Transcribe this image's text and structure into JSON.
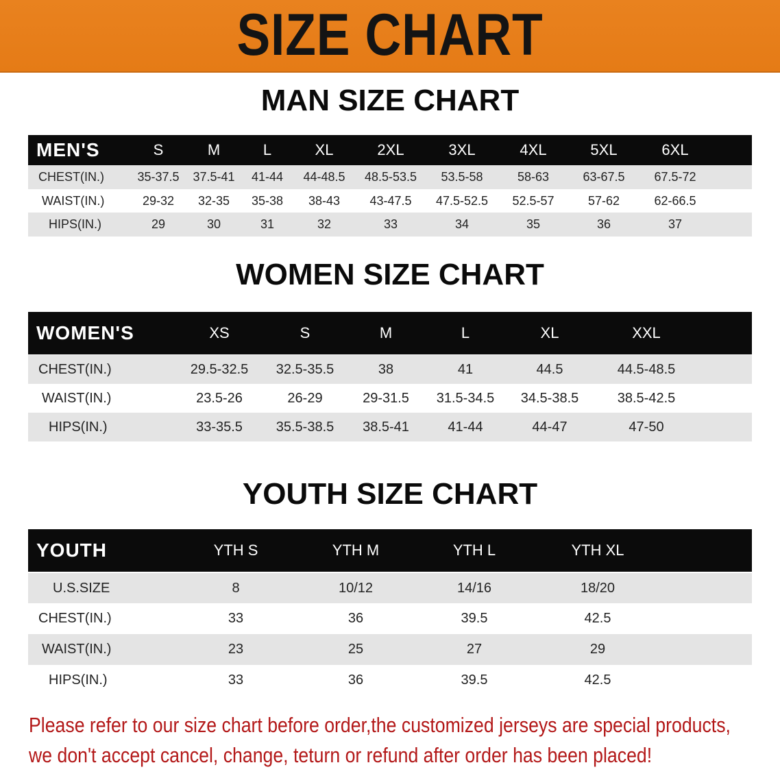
{
  "banner_title": "SIZE CHART",
  "accent_color": "#e67e18",
  "note_color": "#b31818",
  "men": {
    "title": "MAN SIZE CHART",
    "header_label": "MEN'S",
    "sizes": [
      "S",
      "M",
      "L",
      "XL",
      "2XL",
      "3XL",
      "4XL",
      "5XL",
      "6XL"
    ],
    "rows": [
      {
        "label": "CHEST(IN.)",
        "values": [
          "35-37.5",
          "37.5-41",
          "41-44",
          "44-48.5",
          "48.5-53.5",
          "53.5-58",
          "58-63",
          "63-67.5",
          "67.5-72"
        ]
      },
      {
        "label": "WAIST(IN.)",
        "values": [
          "29-32",
          "32-35",
          "35-38",
          "38-43",
          "43-47.5",
          "47.5-52.5",
          "52.5-57",
          "57-62",
          "62-66.5"
        ]
      },
      {
        "label": "HIPS(IN.)",
        "values": [
          "29",
          "30",
          "31",
          "32",
          "33",
          "34",
          "35",
          "36",
          "37"
        ]
      }
    ]
  },
  "women": {
    "title": "WOMEN SIZE CHART",
    "header_label": "WOMEN'S",
    "sizes": [
      "XS",
      "S",
      "M",
      "L",
      "XL",
      "XXL"
    ],
    "rows": [
      {
        "label": "CHEST(IN.)",
        "values": [
          "29.5-32.5",
          "32.5-35.5",
          "38",
          "41",
          "44.5",
          "44.5-48.5"
        ]
      },
      {
        "label": "WAIST(IN.)",
        "values": [
          "23.5-26",
          "26-29",
          "29-31.5",
          "31.5-34.5",
          "34.5-38.5",
          "38.5-42.5"
        ]
      },
      {
        "label": "HIPS(IN.)",
        "values": [
          "33-35.5",
          "35.5-38.5",
          "38.5-41",
          "41-44",
          "44-47",
          "47-50"
        ]
      }
    ]
  },
  "youth": {
    "title": "YOUTH SIZE CHART",
    "header_label": "YOUTH",
    "sizes": [
      "YTH S",
      "YTH M",
      "YTH L",
      "YTH XL"
    ],
    "rows": [
      {
        "label": "U.S.SIZE",
        "values": [
          "8",
          "10/12",
          "14/16",
          "18/20"
        ]
      },
      {
        "label": "CHEST(IN.)",
        "values": [
          "33",
          "36",
          "39.5",
          "42.5"
        ]
      },
      {
        "label": "WAIST(IN.)",
        "values": [
          "23",
          "25",
          "27",
          "29"
        ]
      },
      {
        "label": "HIPS(IN.)",
        "values": [
          "33",
          "36",
          "39.5",
          "42.5"
        ]
      }
    ]
  },
  "notice": [
    "Please refer to our size chart before order,the customized jerseys are special products,",
    "we don't accept cancel, change, teturn or refund after order has been placed!"
  ]
}
